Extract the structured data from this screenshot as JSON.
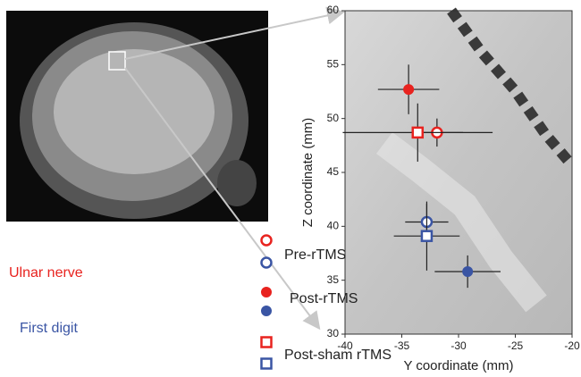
{
  "chart_data": {
    "type": "scatter",
    "xlabel": "Y coordinate (mm)",
    "ylabel": "Z coordinate (mm)",
    "xlim": [
      -40,
      -20
    ],
    "xticks": [
      -40,
      -35,
      -30,
      -25,
      -20
    ],
    "ylim": [
      30,
      60
    ],
    "yticks": [
      30,
      35,
      40,
      45,
      50,
      55,
      60
    ],
    "conditions": [
      {
        "name": "Pre-rTMS",
        "marker": "open-circle"
      },
      {
        "name": "Post-rTMS",
        "marker": "filled-circle"
      },
      {
        "name": "Post-sham rTMS",
        "marker": "open-square"
      }
    ],
    "groups": [
      {
        "name": "Ulnar nerve",
        "color": "#e8231f",
        "points": [
          {
            "x": -31.9,
            "y": 48.7,
            "xerr": 2.3,
            "yerr": 1.3
          },
          {
            "x": -34.4,
            "y": 52.7,
            "xerr": 2.7,
            "yerr": 2.3
          },
          {
            "x": -33.6,
            "y": 48.7,
            "xerr": 6.6,
            "yerr": 2.7
          }
        ]
      },
      {
        "name": "First digit",
        "color": "#3a55a4",
        "points": [
          {
            "x": -32.8,
            "y": 40.4,
            "xerr": 1.9,
            "yerr": 1.7
          },
          {
            "x": -29.2,
            "y": 35.8,
            "xerr": 2.9,
            "yerr": 1.5
          },
          {
            "x": -32.8,
            "y": 39.1,
            "xerr": 2.9,
            "yerr": 3.2
          }
        ]
      }
    ]
  }
}
